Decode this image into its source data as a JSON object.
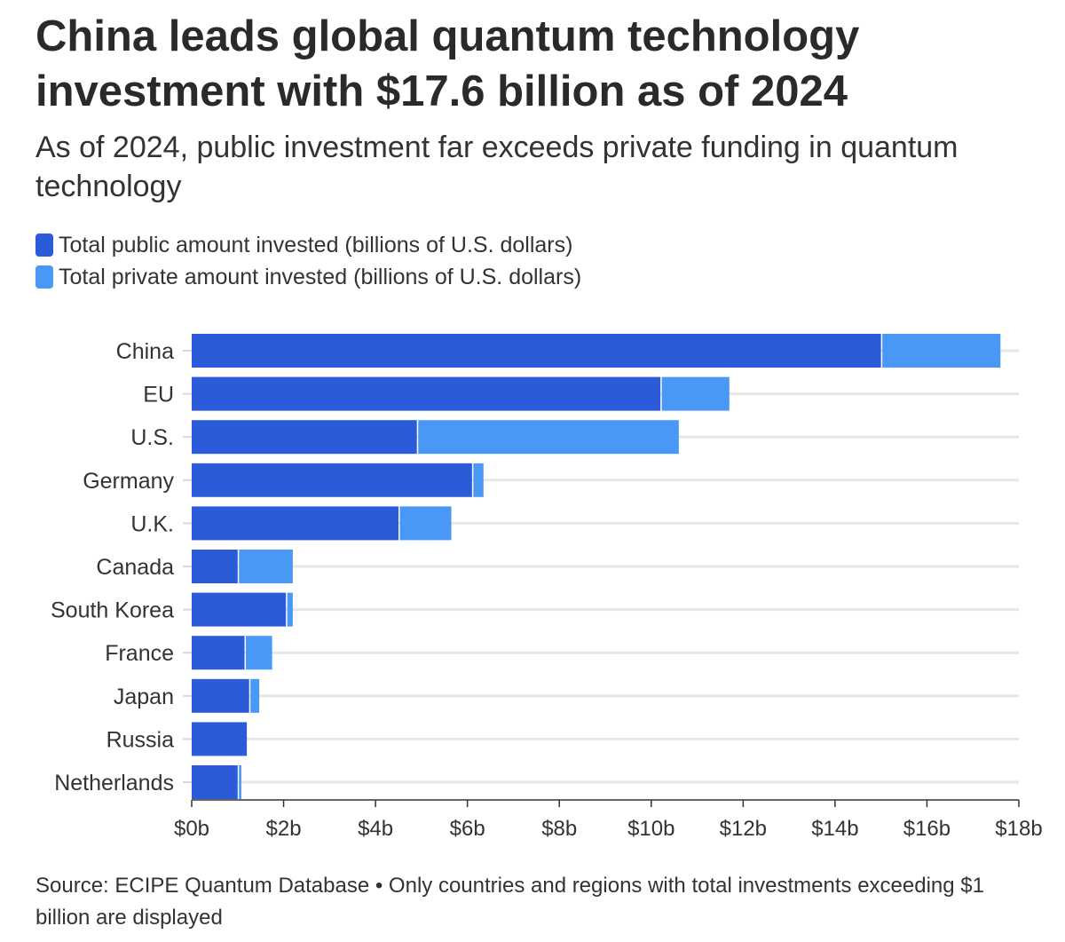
{
  "title": "China leads global quantum technology investment with $17.6 billion as of 2024",
  "subtitle": "As of 2024, public investment far exceeds private funding in quantum technology",
  "legend": [
    {
      "label": "Total public amount invested (billions of U.S. dollars)",
      "color": "#2b5bd9"
    },
    {
      "label": "Total private amount invested (billions of U.S. dollars)",
      "color": "#4a98f5"
    }
  ],
  "source": "Source: ECIPE Quantum Database • Only countries and regions with total investments exceeding $1 billion are displayed",
  "chart_data": {
    "type": "bar",
    "orientation": "horizontal",
    "stacked": true,
    "categories": [
      "China",
      "EU",
      "U.S.",
      "Germany",
      "U.K.",
      "Canada",
      "South Korea",
      "France",
      "Japan",
      "Russia",
      "Netherlands"
    ],
    "series": [
      {
        "name": "Total public amount invested (billions of U.S. dollars)",
        "color": "#2b5bd9",
        "values": [
          15.0,
          10.2,
          4.9,
          6.1,
          4.5,
          1.0,
          2.05,
          1.15,
          1.25,
          1.2,
          1.0
        ]
      },
      {
        "name": "Total private amount invested (billions of U.S. dollars)",
        "color": "#4a98f5",
        "values": [
          2.6,
          1.5,
          5.7,
          0.25,
          1.15,
          1.2,
          0.15,
          0.6,
          0.22,
          0.0,
          0.08
        ]
      }
    ],
    "xlim": [
      0,
      18
    ],
    "xticks": [
      0,
      2,
      4,
      6,
      8,
      10,
      12,
      14,
      16,
      18
    ],
    "xtick_labels": [
      "$0b",
      "$2b",
      "$4b",
      "$6b",
      "$8b",
      "$10b",
      "$12b",
      "$14b",
      "$16b",
      "$18b"
    ],
    "grid": true,
    "legend_position": "top-left"
  }
}
